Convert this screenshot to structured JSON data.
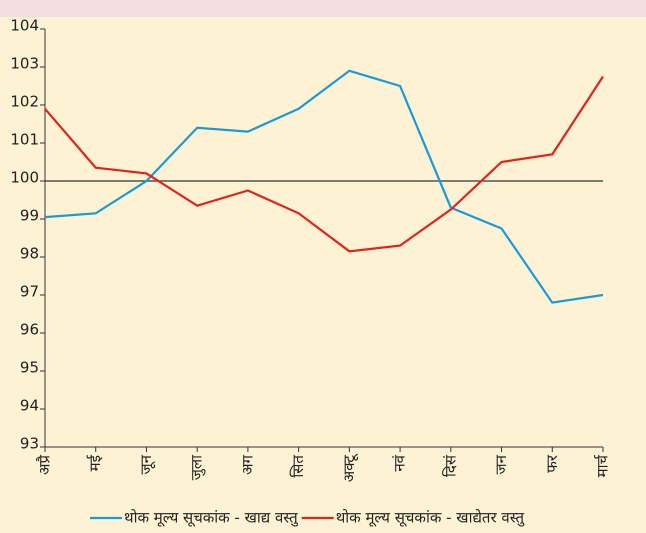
{
  "chart_data": {
    "type": "line",
    "categories": [
      "अप्रै",
      "मई",
      "जून",
      "जुला",
      "अग",
      "सित",
      "अक्टू",
      "नवं",
      "दिसं",
      "जन",
      "फर",
      "मार्च"
    ],
    "series": [
      {
        "name": "थोक मूल्य सूचकांक - खाद्य वस्तु",
        "color": "#1a9ad6",
        "values": [
          99.05,
          99.15,
          100.0,
          101.4,
          101.3,
          101.9,
          102.9,
          102.5,
          99.3,
          98.75,
          96.8,
          97.0
        ]
      },
      {
        "name": "थोक मूल्य सूचकांक - खाद्येतर वस्तु",
        "color": "#e2231a",
        "values": [
          101.9,
          100.35,
          100.2,
          99.35,
          99.75,
          99.15,
          98.15,
          98.3,
          99.25,
          100.5,
          100.7,
          102.75
        ]
      }
    ],
    "ylim": [
      93,
      104
    ],
    "yticks": [
      93,
      94,
      95,
      96,
      97,
      98,
      99,
      100,
      101,
      102,
      103,
      104
    ],
    "reference_line": 100
  }
}
